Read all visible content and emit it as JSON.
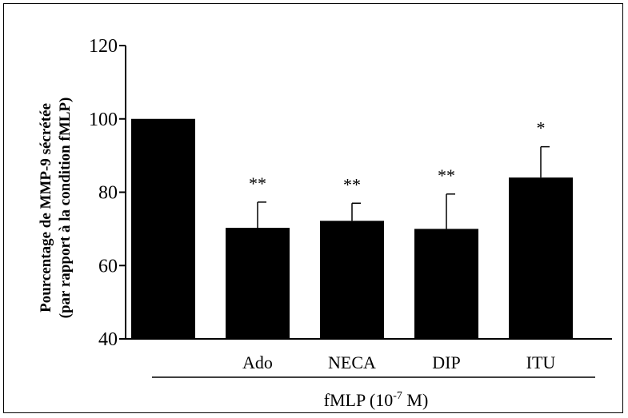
{
  "chart_data": {
    "type": "bar",
    "title": "",
    "ylabel_line1": "Pourcentage de MMP-9 sécrétée",
    "ylabel_line2": "(par rapport à la condition fMLP)",
    "xlabel_prefix": "fMLP (10",
    "xlabel_exp": "-7",
    "xlabel_suffix": " M)",
    "ylim": [
      40,
      120
    ],
    "yticks": [
      40,
      60,
      80,
      100,
      120
    ],
    "categories": [
      "",
      "Ado",
      "NECA",
      "DIP",
      "ITU"
    ],
    "values": [
      100,
      70.3,
      72.2,
      70,
      84
    ],
    "errors": [
      0,
      7,
      4.8,
      9.5,
      8.4
    ],
    "significance": [
      "",
      "**",
      "**",
      "**",
      "*"
    ],
    "grid": false,
    "colors": {
      "bar": "#000000",
      "axis": "#000000",
      "text": "#000000"
    }
  }
}
